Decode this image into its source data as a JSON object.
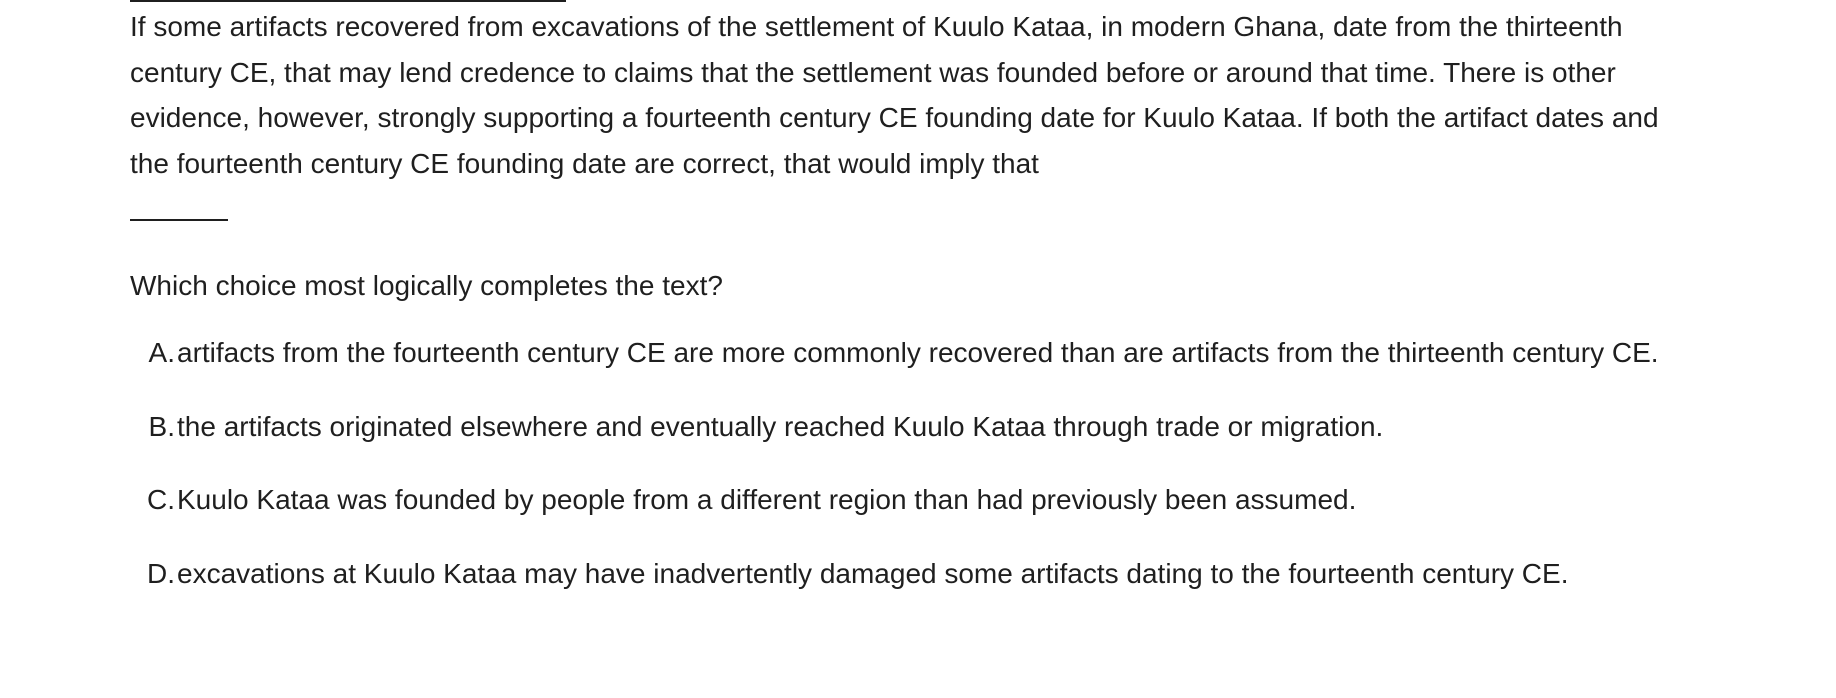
{
  "passage": {
    "text": "If some artifacts recovered from excavations of the settlement of Kuulo Kataa, in modern Ghana, date from the thirteenth century CE, that may lend credence to claims that the settlement was founded before or around that time. There is other evidence, however, strongly supporting a fourteenth century CE founding date for Kuulo Kataa. If both the artifact dates and the fourteenth century CE founding date are correct, that would imply that"
  },
  "question": {
    "prompt": "Which choice most logically completes the text?"
  },
  "choices": [
    {
      "letter": "A.",
      "text": "artifacts from the fourteenth century CE are more commonly recovered than are artifacts from the thirteenth century CE."
    },
    {
      "letter": "B.",
      "text": "the artifacts originated elsewhere and eventually reached Kuulo Kataa through trade or migration."
    },
    {
      "letter": "C.",
      "text": "Kuulo Kataa was founded by people from a different region than had previously been assumed."
    },
    {
      "letter": "D.",
      "text": "excavations at Kuulo Kataa may have inadvertently damaged some artifacts dating to the fourteenth century CE."
    }
  ]
}
